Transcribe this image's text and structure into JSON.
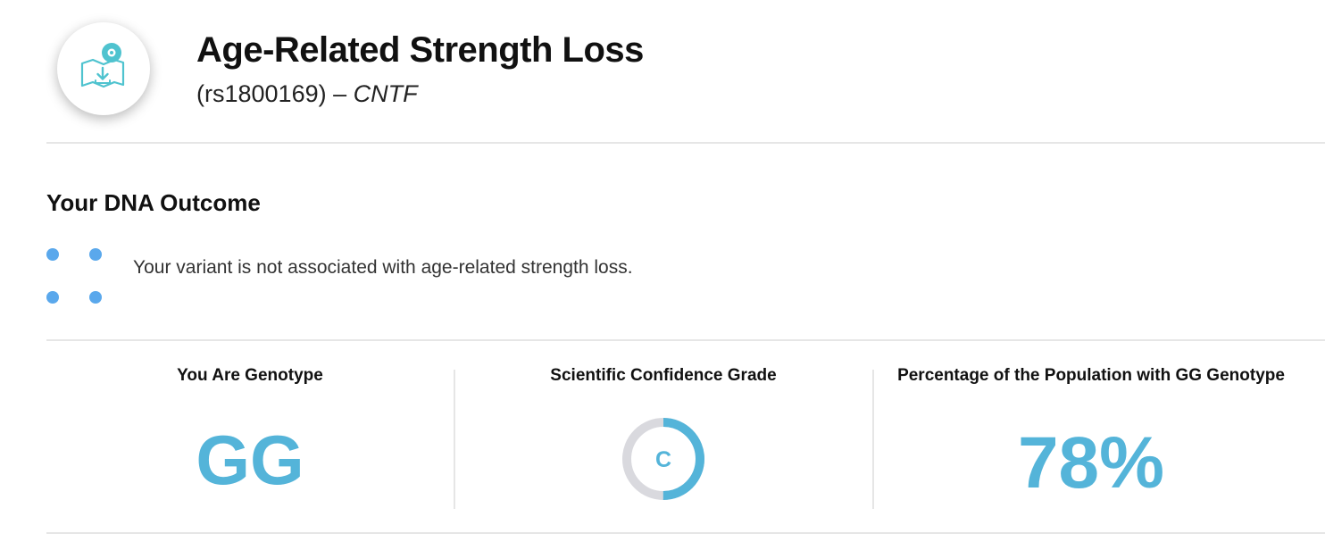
{
  "header": {
    "icon": "map-download-icon",
    "title": "Age-Related Strength Loss",
    "subtitle_prefix": "(rs1800169) – ",
    "gene": "CNTF"
  },
  "outcome": {
    "section_title": "Your DNA Outcome",
    "indicator_icon": "dot-grid-icon",
    "text": "Your variant is not associated with age-related strength loss."
  },
  "stats": {
    "genotype": {
      "label": "You Are Genotype",
      "value": "GG"
    },
    "confidence": {
      "label": "Scientific Confidence Grade",
      "grade": "C",
      "fill_fraction": 0.5
    },
    "population": {
      "label": "Percentage of the Population with GG Genotype",
      "value": "78%"
    }
  },
  "colors": {
    "accent": "#54b4d9",
    "ring_track": "#d9d9de",
    "dot": "#5aa8ec",
    "divider": "#e6e6e6"
  }
}
